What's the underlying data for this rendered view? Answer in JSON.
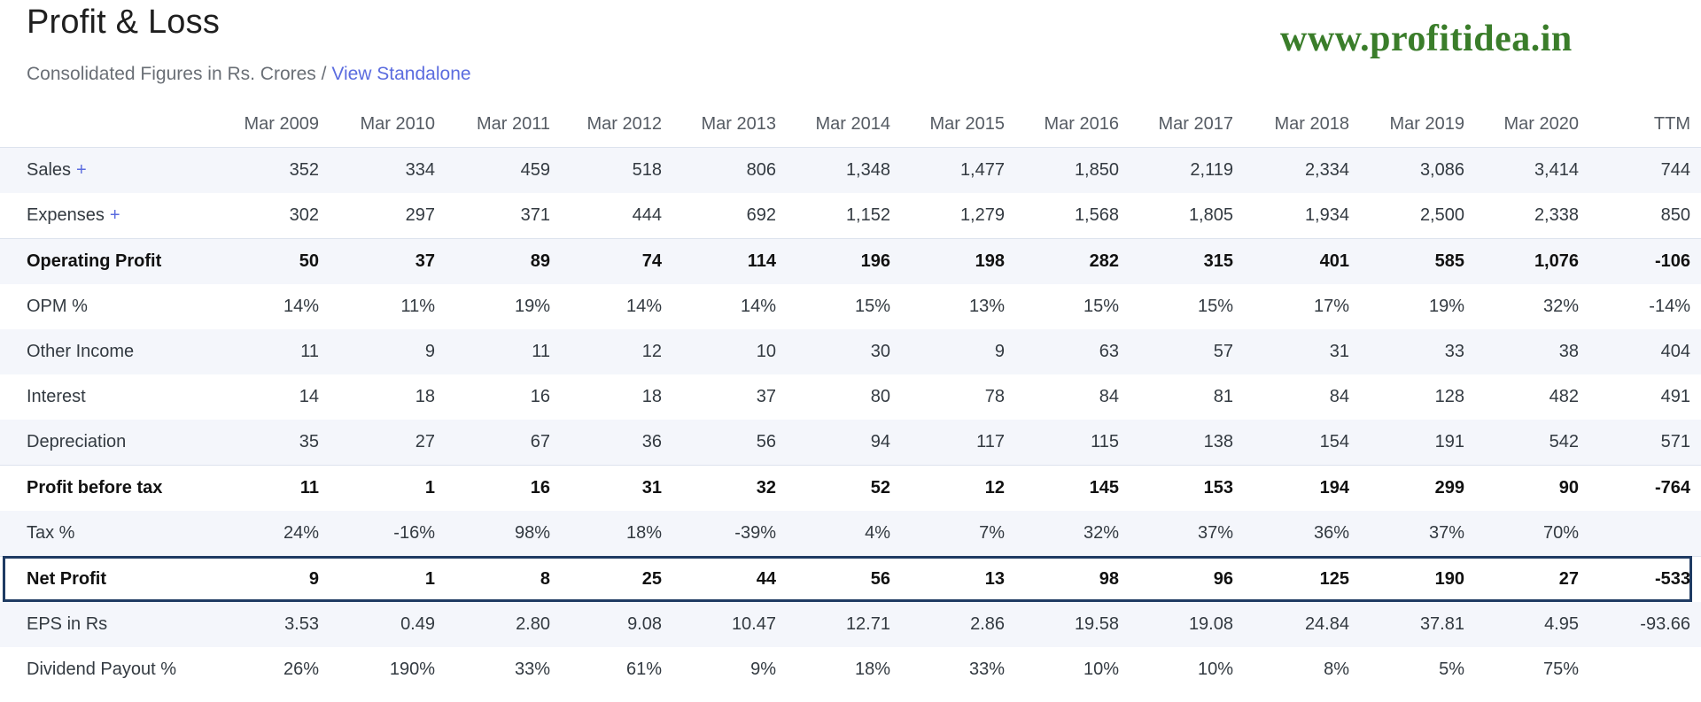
{
  "header": {
    "title": "Profit & Loss",
    "subtitle_prefix": "Consolidated Figures in Rs. Crores / ",
    "view_link": "View Standalone",
    "watermark": "www.profitidea.in"
  },
  "table": {
    "columns": [
      "Mar 2009",
      "Mar 2010",
      "Mar 2011",
      "Mar 2012",
      "Mar 2013",
      "Mar 2014",
      "Mar 2015",
      "Mar 2016",
      "Mar 2017",
      "Mar 2018",
      "Mar 2019",
      "Mar 2020",
      "TTM"
    ],
    "rows": [
      {
        "label": "Sales",
        "expand": "+",
        "values": [
          "352",
          "334",
          "459",
          "518",
          "806",
          "1,348",
          "1,477",
          "1,850",
          "2,119",
          "2,334",
          "3,086",
          "3,414",
          "744"
        ]
      },
      {
        "label": "Expenses",
        "expand": "+",
        "values": [
          "302",
          "297",
          "371",
          "444",
          "692",
          "1,152",
          "1,279",
          "1,568",
          "1,805",
          "1,934",
          "2,500",
          "2,338",
          "850"
        ]
      },
      {
        "label": "Operating Profit",
        "values": [
          "50",
          "37",
          "89",
          "74",
          "114",
          "196",
          "198",
          "282",
          "315",
          "401",
          "585",
          "1,076",
          "-106"
        ]
      },
      {
        "label": "OPM %",
        "values": [
          "14%",
          "11%",
          "19%",
          "14%",
          "14%",
          "15%",
          "13%",
          "15%",
          "15%",
          "17%",
          "19%",
          "32%",
          "-14%"
        ]
      },
      {
        "label": "Other Income",
        "values": [
          "11",
          "9",
          "11",
          "12",
          "10",
          "30",
          "9",
          "63",
          "57",
          "31",
          "33",
          "38",
          "404"
        ]
      },
      {
        "label": "Interest",
        "values": [
          "14",
          "18",
          "16",
          "18",
          "37",
          "80",
          "78",
          "84",
          "81",
          "84",
          "128",
          "482",
          "491"
        ]
      },
      {
        "label": "Depreciation",
        "values": [
          "35",
          "27",
          "67",
          "36",
          "56",
          "94",
          "117",
          "115",
          "138",
          "154",
          "191",
          "542",
          "571"
        ]
      },
      {
        "label": "Profit before tax",
        "values": [
          "11",
          "1",
          "16",
          "31",
          "32",
          "52",
          "12",
          "145",
          "153",
          "194",
          "299",
          "90",
          "-764"
        ]
      },
      {
        "label": "Tax %",
        "values": [
          "24%",
          "-16%",
          "98%",
          "18%",
          "-39%",
          "4%",
          "7%",
          "32%",
          "37%",
          "36%",
          "37%",
          "70%",
          ""
        ]
      },
      {
        "label": "Net Profit",
        "values": [
          "9",
          "1",
          "8",
          "25",
          "44",
          "56",
          "13",
          "98",
          "96",
          "125",
          "190",
          "27",
          "-533"
        ]
      },
      {
        "label": "EPS in Rs",
        "values": [
          "3.53",
          "0.49",
          "2.80",
          "9.08",
          "10.47",
          "12.71",
          "2.86",
          "19.58",
          "19.08",
          "24.84",
          "37.81",
          "4.95",
          "-93.66"
        ]
      },
      {
        "label": "Dividend Payout %",
        "values": [
          "26%",
          "190%",
          "33%",
          "61%",
          "9%",
          "18%",
          "33%",
          "10%",
          "10%",
          "8%",
          "5%",
          "75%",
          ""
        ]
      }
    ]
  }
}
